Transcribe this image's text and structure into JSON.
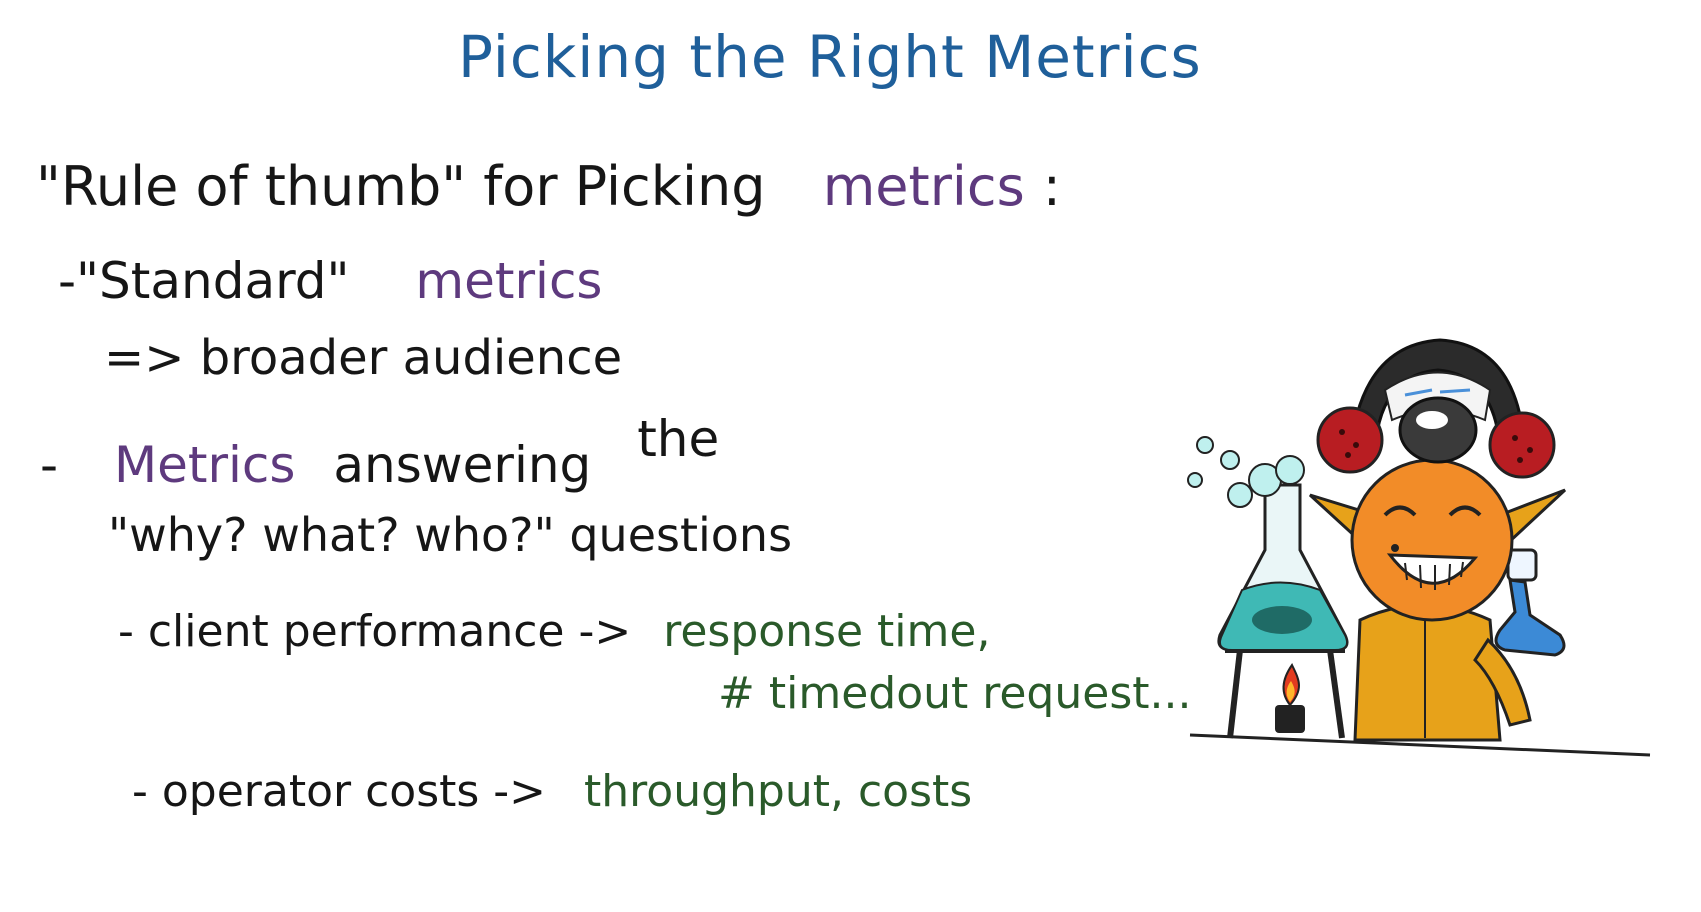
{
  "title": "Picking the Right Metrics",
  "line1": {
    "prefix": "\"Rule of thumb\" for Picking",
    "highlight": "metrics",
    "suffix": ":"
  },
  "line2": {
    "prefix": "-\"Standard\"",
    "highlight": "metrics"
  },
  "line3": {
    "text": "=> broader audience"
  },
  "line4": {
    "dash": "-",
    "highlight": "Metrics",
    "middle": "answering",
    "the": "the"
  },
  "line5": {
    "text": "\"why? what? who?\" questions"
  },
  "line6": {
    "prefix": "- client performance ->",
    "result": "response time,"
  },
  "line7": {
    "result": "# timedout request..."
  },
  "line8": {
    "prefix": "- operator costs ->",
    "result": "throughput, costs"
  },
  "illustration": {
    "icon": "scientist-character-icon"
  },
  "colors": {
    "title": "#1f5f9a",
    "text": "#161616",
    "highlight": "#5e3a7e",
    "result": "#2a5a2a"
  }
}
